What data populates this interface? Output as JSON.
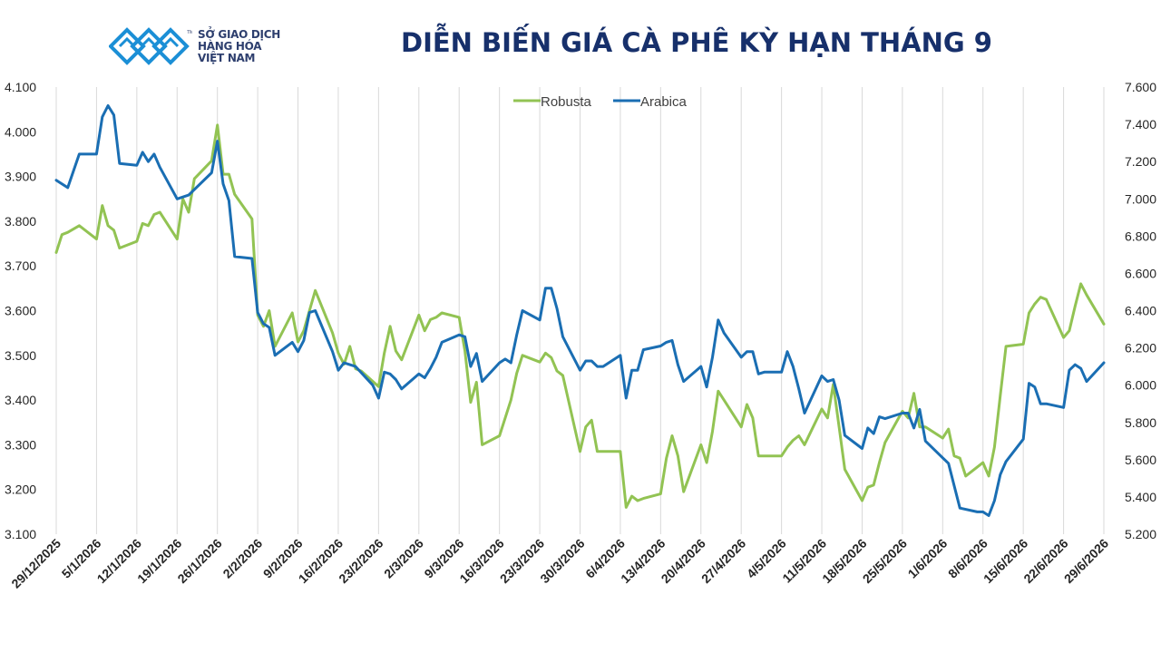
{
  "header": {
    "title": "DIỄN BIẾN GIÁ CÀ PHÊ KỲ HẠN THÁNG 9",
    "logo_line1": "SỞ GIAO DỊCH",
    "logo_line2": "HÀNG HÓA",
    "logo_line3": "VIỆT NAM",
    "logo_tm": "TM"
  },
  "colors": {
    "robusta": "#92c353",
    "arabica": "#1a6eb3",
    "title": "#17306b",
    "grid": "#d9d9d9",
    "logo": "#1b8fd6"
  },
  "chart_data": {
    "type": "line",
    "title": "DIỄN BIẾN GIÁ CÀ PHÊ KỲ HẠN THÁNG 9",
    "legend_position": "top-center",
    "grid": "vertical",
    "x_ticks": [
      "29/12/2025",
      "5/1/2026",
      "12/1/2026",
      "19/1/2026",
      "26/1/2026",
      "2/2/2026",
      "9/2/2026",
      "16/2/2026",
      "23/2/2026",
      "2/3/2026",
      "9/3/2026",
      "16/3/2026",
      "23/3/2026",
      "30/3/2026",
      "6/4/2026",
      "13/4/2026",
      "20/4/2026",
      "27/4/2026",
      "4/5/2026",
      "11/5/2026",
      "18/5/2026",
      "25/5/2026",
      "1/6/2026",
      "8/6/2026",
      "15/6/2026",
      "22/6/2026",
      "29/6/2026"
    ],
    "y_left": {
      "ticks": [
        "3.100",
        "3.200",
        "3.300",
        "3.400",
        "3.500",
        "3.600",
        "3.700",
        "3.800",
        "3.900",
        "4.000",
        "4.100"
      ],
      "range": [
        3100,
        4100
      ]
    },
    "y_right": {
      "ticks": [
        "5.200",
        "5.400",
        "5.600",
        "5.800",
        "6.000",
        "6.200",
        "6.400",
        "6.600",
        "6.800",
        "7.000",
        "7.200",
        "7.400",
        "7.600"
      ],
      "range": [
        5200,
        7600
      ]
    },
    "series": [
      {
        "name": "Robusta",
        "axis": "left",
        "points": [
          [
            0,
            3730
          ],
          [
            1,
            3770
          ],
          [
            2,
            3775
          ],
          [
            4,
            3790
          ],
          [
            6,
            3770
          ],
          [
            7,
            3760
          ],
          [
            8,
            3835
          ],
          [
            9,
            3790
          ],
          [
            10,
            3780
          ],
          [
            11,
            3740
          ],
          [
            14,
            3755
          ],
          [
            15,
            3795
          ],
          [
            16,
            3790
          ],
          [
            17,
            3815
          ],
          [
            18,
            3820
          ],
          [
            21,
            3760
          ],
          [
            22,
            3850
          ],
          [
            23,
            3820
          ],
          [
            24,
            3895
          ],
          [
            27,
            3935
          ],
          [
            28,
            4015
          ],
          [
            29,
            3905
          ],
          [
            30,
            3905
          ],
          [
            31,
            3860
          ],
          [
            34,
            3805
          ],
          [
            35,
            3590
          ],
          [
            36,
            3565
          ],
          [
            37,
            3600
          ],
          [
            38,
            3520
          ],
          [
            41,
            3595
          ],
          [
            42,
            3530
          ],
          [
            43,
            3555
          ],
          [
            44,
            3600
          ],
          [
            45,
            3645
          ],
          [
            48,
            3550
          ],
          [
            49,
            3505
          ],
          [
            50,
            3480
          ],
          [
            51,
            3520
          ],
          [
            52,
            3470
          ],
          [
            53,
            3465
          ],
          [
            56,
            3430
          ],
          [
            57,
            3505
          ],
          [
            58,
            3565
          ],
          [
            59,
            3510
          ],
          [
            60,
            3490
          ],
          [
            63,
            3590
          ],
          [
            64,
            3555
          ],
          [
            65,
            3580
          ],
          [
            66,
            3585
          ],
          [
            67,
            3595
          ],
          [
            70,
            3585
          ],
          [
            71,
            3510
          ],
          [
            72,
            3395
          ],
          [
            73,
            3440
          ],
          [
            74,
            3300
          ],
          [
            77,
            3320
          ],
          [
            78,
            3360
          ],
          [
            79,
            3400
          ],
          [
            80,
            3460
          ],
          [
            81,
            3500
          ],
          [
            84,
            3485
          ],
          [
            85,
            3505
          ],
          [
            86,
            3495
          ],
          [
            87,
            3465
          ],
          [
            88,
            3455
          ],
          [
            91,
            3285
          ],
          [
            92,
            3340
          ],
          [
            93,
            3355
          ],
          [
            94,
            3285
          ],
          [
            95,
            3285
          ],
          [
            98,
            3285
          ],
          [
            99,
            3160
          ],
          [
            100,
            3185
          ],
          [
            101,
            3175
          ],
          [
            102,
            3180
          ],
          [
            105,
            3190
          ],
          [
            106,
            3270
          ],
          [
            107,
            3320
          ],
          [
            108,
            3275
          ],
          [
            109,
            3195
          ],
          [
            112,
            3300
          ],
          [
            113,
            3260
          ],
          [
            114,
            3330
          ],
          [
            115,
            3420
          ],
          [
            116,
            3400
          ],
          [
            119,
            3340
          ],
          [
            120,
            3390
          ],
          [
            121,
            3360
          ],
          [
            122,
            3275
          ],
          [
            123,
            3275
          ],
          [
            126,
            3275
          ],
          [
            127,
            3295
          ],
          [
            128,
            3310
          ],
          [
            129,
            3320
          ],
          [
            130,
            3300
          ],
          [
            133,
            3380
          ],
          [
            134,
            3360
          ],
          [
            135,
            3435
          ],
          [
            136,
            3340
          ],
          [
            137,
            3245
          ],
          [
            140,
            3175
          ],
          [
            141,
            3205
          ],
          [
            142,
            3210
          ],
          [
            143,
            3260
          ],
          [
            144,
            3305
          ],
          [
            147,
            3375
          ],
          [
            148,
            3360
          ],
          [
            149,
            3415
          ],
          [
            150,
            3340
          ],
          [
            151,
            3340
          ],
          [
            154,
            3315
          ],
          [
            155,
            3335
          ],
          [
            156,
            3275
          ],
          [
            157,
            3270
          ],
          [
            158,
            3230
          ],
          [
            161,
            3260
          ],
          [
            162,
            3230
          ],
          [
            163,
            3295
          ],
          [
            164,
            3410
          ],
          [
            165,
            3520
          ],
          [
            168,
            3525
          ],
          [
            169,
            3595
          ],
          [
            170,
            3615
          ],
          [
            171,
            3630
          ],
          [
            172,
            3625
          ],
          [
            175,
            3540
          ],
          [
            176,
            3555
          ],
          [
            177,
            3610
          ],
          [
            178,
            3660
          ],
          [
            179,
            3635
          ],
          [
            182,
            3570
          ]
        ]
      },
      {
        "name": "Arabica",
        "axis": "right",
        "points": [
          [
            0,
            7100
          ],
          [
            2,
            7060
          ],
          [
            4,
            7240
          ],
          [
            7,
            7240
          ],
          [
            8,
            7440
          ],
          [
            9,
            7500
          ],
          [
            10,
            7450
          ],
          [
            11,
            7190
          ],
          [
            14,
            7180
          ],
          [
            15,
            7250
          ],
          [
            16,
            7200
          ],
          [
            17,
            7240
          ],
          [
            18,
            7170
          ],
          [
            21,
            7000
          ],
          [
            23,
            7020
          ],
          [
            27,
            7140
          ],
          [
            28,
            7310
          ],
          [
            29,
            7080
          ],
          [
            30,
            6990
          ],
          [
            31,
            6690
          ],
          [
            34,
            6680
          ],
          [
            35,
            6390
          ],
          [
            36,
            6330
          ],
          [
            37,
            6310
          ],
          [
            38,
            6160
          ],
          [
            41,
            6230
          ],
          [
            42,
            6180
          ],
          [
            43,
            6240
          ],
          [
            44,
            6390
          ],
          [
            45,
            6400
          ],
          [
            48,
            6180
          ],
          [
            49,
            6080
          ],
          [
            50,
            6120
          ],
          [
            51,
            6110
          ],
          [
            52,
            6100
          ],
          [
            55,
            6000
          ],
          [
            56,
            5930
          ],
          [
            57,
            6070
          ],
          [
            58,
            6060
          ],
          [
            59,
            6030
          ],
          [
            60,
            5980
          ],
          [
            63,
            6060
          ],
          [
            64,
            6040
          ],
          [
            65,
            6090
          ],
          [
            66,
            6150
          ],
          [
            67,
            6230
          ],
          [
            70,
            6270
          ],
          [
            71,
            6260
          ],
          [
            72,
            6100
          ],
          [
            73,
            6170
          ],
          [
            74,
            6020
          ],
          [
            77,
            6120
          ],
          [
            78,
            6140
          ],
          [
            79,
            6120
          ],
          [
            80,
            6270
          ],
          [
            81,
            6400
          ],
          [
            84,
            6350
          ],
          [
            85,
            6520
          ],
          [
            86,
            6520
          ],
          [
            87,
            6410
          ],
          [
            88,
            6260
          ],
          [
            91,
            6080
          ],
          [
            92,
            6130
          ],
          [
            93,
            6130
          ],
          [
            94,
            6100
          ],
          [
            95,
            6100
          ],
          [
            98,
            6160
          ],
          [
            99,
            5930
          ],
          [
            100,
            6080
          ],
          [
            101,
            6080
          ],
          [
            102,
            6190
          ],
          [
            105,
            6210
          ],
          [
            106,
            6230
          ],
          [
            107,
            6240
          ],
          [
            108,
            6110
          ],
          [
            109,
            6020
          ],
          [
            112,
            6100
          ],
          [
            113,
            5990
          ],
          [
            114,
            6150
          ],
          [
            115,
            6350
          ],
          [
            116,
            6280
          ],
          [
            119,
            6150
          ],
          [
            120,
            6180
          ],
          [
            121,
            6180
          ],
          [
            122,
            6060
          ],
          [
            123,
            6070
          ],
          [
            126,
            6070
          ],
          [
            127,
            6180
          ],
          [
            128,
            6100
          ],
          [
            129,
            5980
          ],
          [
            130,
            5850
          ],
          [
            133,
            6050
          ],
          [
            134,
            6020
          ],
          [
            135,
            6030
          ],
          [
            136,
            5920
          ],
          [
            137,
            5730
          ],
          [
            140,
            5660
          ],
          [
            141,
            5770
          ],
          [
            142,
            5740
          ],
          [
            143,
            5830
          ],
          [
            144,
            5820
          ],
          [
            147,
            5850
          ],
          [
            148,
            5850
          ],
          [
            149,
            5770
          ],
          [
            150,
            5870
          ],
          [
            151,
            5700
          ],
          [
            154,
            5610
          ],
          [
            155,
            5580
          ],
          [
            156,
            5460
          ],
          [
            157,
            5340
          ],
          [
            160,
            5320
          ],
          [
            161,
            5320
          ],
          [
            162,
            5300
          ],
          [
            163,
            5380
          ],
          [
            164,
            5520
          ],
          [
            165,
            5590
          ],
          [
            168,
            5710
          ],
          [
            169,
            6010
          ],
          [
            170,
            5990
          ],
          [
            171,
            5900
          ],
          [
            172,
            5900
          ],
          [
            175,
            5880
          ],
          [
            176,
            6080
          ],
          [
            177,
            6110
          ],
          [
            178,
            6090
          ],
          [
            179,
            6020
          ],
          [
            182,
            6120
          ]
        ]
      }
    ]
  }
}
